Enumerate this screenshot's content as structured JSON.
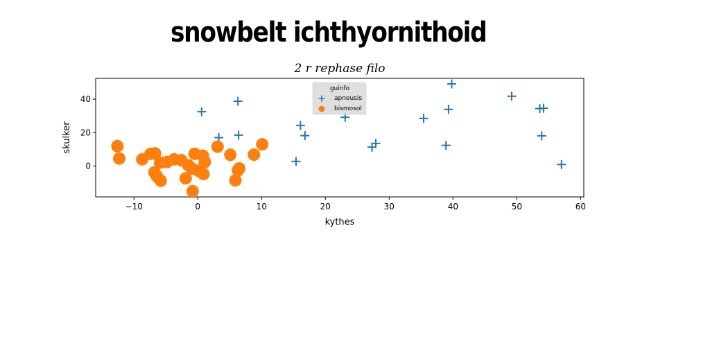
{
  "page": {
    "title": "snowbelt ichthyornithoid"
  },
  "chart_data": {
    "type": "scatter",
    "title": "2 r rephase filo",
    "xlabel": "kythes",
    "ylabel": "skulker",
    "xlim": [
      -16,
      60.5
    ],
    "ylim": [
      -18.5,
      52.5
    ],
    "xticks": [
      -10,
      0,
      10,
      20,
      30,
      40,
      50,
      60
    ],
    "yticks": [
      0,
      20,
      40
    ],
    "xtick_labels": [
      "−10",
      "0",
      "10",
      "20",
      "30",
      "40",
      "50",
      "60"
    ],
    "ytick_labels": [
      "0",
      "20",
      "40"
    ],
    "grid": false,
    "legend": {
      "title": "guinfo",
      "placement": "top-center"
    },
    "colors": {
      "apneusis": "#1f77b4",
      "bismosol": "#ff7f0e"
    },
    "series": [
      {
        "name": "apneusis",
        "marker": "plus",
        "points": [
          [
            0.6,
            32.5
          ],
          [
            6.3,
            38.8
          ],
          [
            3.3,
            17.0
          ],
          [
            6.4,
            18.5
          ],
          [
            16.1,
            24.3
          ],
          [
            16.8,
            18.2
          ],
          [
            15.4,
            2.8
          ],
          [
            23.1,
            29.2
          ],
          [
            27.3,
            11.3
          ],
          [
            27.9,
            13.5
          ],
          [
            35.4,
            28.5
          ],
          [
            39.3,
            33.9
          ],
          [
            39.8,
            49.2
          ],
          [
            38.9,
            12.4
          ],
          [
            49.2,
            41.8
          ],
          [
            53.6,
            34.4
          ],
          [
            54.2,
            34.6
          ],
          [
            53.9,
            18.1
          ],
          [
            57.0,
            0.9
          ]
        ]
      },
      {
        "name": "bismosol",
        "marker": "circle",
        "points": [
          [
            -12.6,
            11.9
          ],
          [
            -12.3,
            4.5
          ],
          [
            -8.7,
            4.0
          ],
          [
            -7.4,
            7.3
          ],
          [
            -6.7,
            7.6
          ],
          [
            -6.8,
            -3.8
          ],
          [
            -6.4,
            -6.2
          ],
          [
            -5.9,
            2.0
          ],
          [
            -5.8,
            -8.8
          ],
          [
            -4.8,
            2.4
          ],
          [
            -3.7,
            4.0
          ],
          [
            -2.6,
            3.5
          ],
          [
            -1.9,
            -7.4
          ],
          [
            -1.5,
            0.5
          ],
          [
            -0.9,
            -1.5
          ],
          [
            -0.8,
            -15.1
          ],
          [
            -0.5,
            7.3
          ],
          [
            0.1,
            -2.8
          ],
          [
            0.8,
            6.2
          ],
          [
            1.1,
            2.4
          ],
          [
            0.9,
            -4.8
          ],
          [
            3.1,
            11.6
          ],
          [
            5.1,
            6.7
          ],
          [
            6.3,
            -2.6
          ],
          [
            5.9,
            -8.6
          ],
          [
            6.5,
            -1.4
          ],
          [
            8.8,
            6.8
          ],
          [
            10.1,
            13.0
          ]
        ]
      }
    ]
  }
}
